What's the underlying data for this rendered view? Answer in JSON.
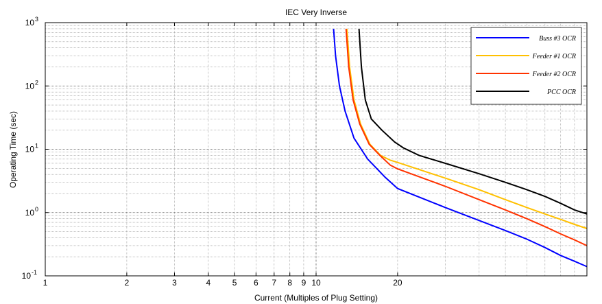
{
  "chart_data": {
    "type": "line",
    "title": "IEC Very Inverse",
    "xlabel": "Current (Multiples of Plug Setting)",
    "ylabel": "Operating Time (sec)",
    "x_scale": "log",
    "y_scale": "log",
    "xlim": [
      1,
      100
    ],
    "ylim": [
      0.1,
      1000
    ],
    "x_ticks": [
      1,
      2,
      3,
      4,
      5,
      6,
      7,
      8,
      9,
      10,
      20
    ],
    "x_tick_labels": [
      "1",
      "2",
      "3",
      "4",
      "5",
      "6",
      "7",
      "8",
      "9",
      "10",
      "20"
    ],
    "y_ticks": [
      0.1,
      1,
      10,
      100,
      1000
    ],
    "y_tick_base": "10",
    "y_tick_exponents": [
      "-1",
      "0",
      "1",
      "2",
      "3"
    ],
    "grid": true,
    "legend_position": "top-right",
    "series": [
      {
        "name": "Buss #3 OCR",
        "color": "#0000ff",
        "x": [
          11.6,
          11.8,
          12.2,
          12.8,
          13.8,
          15.5,
          18.0,
          20.0,
          30,
          40,
          50,
          60,
          70,
          80,
          90,
          100
        ],
        "y": [
          800,
          300,
          100,
          40,
          15,
          7,
          3.6,
          2.4,
          1.2,
          0.75,
          0.52,
          0.38,
          0.28,
          0.21,
          0.17,
          0.14
        ]
      },
      {
        "name": "Feeder #1 OCR",
        "color": "#ffc000",
        "x": [
          13.0,
          13.3,
          13.8,
          14.6,
          15.8,
          17.3,
          18.8,
          20.0,
          30,
          40,
          50,
          60,
          70,
          80,
          90,
          100
        ],
        "y": [
          800,
          200,
          60,
          25,
          12,
          8,
          6.7,
          6.2,
          3.5,
          2.3,
          1.6,
          1.2,
          0.95,
          0.78,
          0.65,
          0.56
        ]
      },
      {
        "name": "Feeder #2 OCR",
        "color": "#ff3300",
        "x": [
          12.9,
          13.2,
          13.7,
          14.5,
          15.7,
          17.2,
          18.8,
          20.0,
          30,
          40,
          50,
          60,
          70,
          80,
          90,
          100
        ],
        "y": [
          800,
          200,
          60,
          25,
          12,
          8,
          5.6,
          4.9,
          2.6,
          1.6,
          1.1,
          0.8,
          0.6,
          0.46,
          0.37,
          0.3
        ]
      },
      {
        "name": "PCC OCR",
        "color": "#000000",
        "x": [
          14.4,
          14.7,
          15.2,
          16.0,
          17.5,
          19.5,
          21.0,
          24.0,
          30,
          40,
          50,
          60,
          70,
          80,
          90,
          100
        ],
        "y": [
          800,
          200,
          60,
          30,
          20,
          13,
          10.5,
          8,
          6,
          4.1,
          3.0,
          2.3,
          1.8,
          1.4,
          1.1,
          0.95
        ]
      }
    ]
  }
}
